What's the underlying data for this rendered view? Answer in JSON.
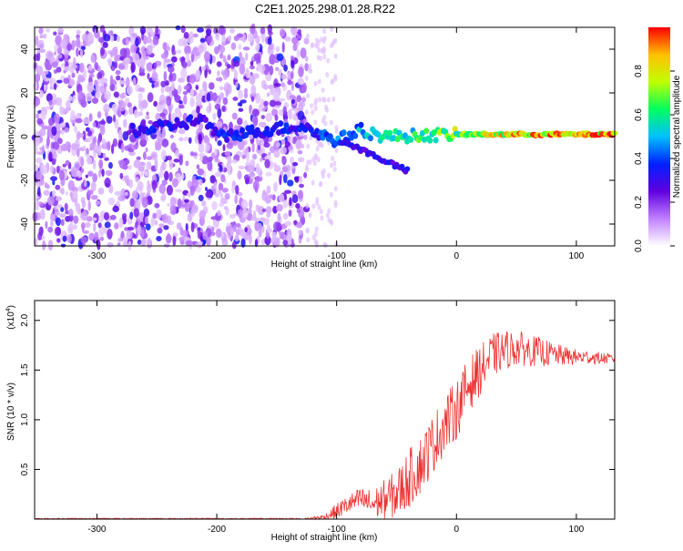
{
  "title": "C2E1.2025.298.01.28.R22",
  "chart_data": [
    {
      "type": "heatmap",
      "title": "C2E1.2025.298.01.28.R22",
      "xlabel": "Height of straight line (km)",
      "ylabel": "Frequency (Hz)",
      "xlim": [
        -352,
        132
      ],
      "ylim": [
        -50,
        50
      ],
      "xticks": [
        -300,
        -200,
        -100,
        0,
        100
      ],
      "yticks": [
        40,
        20,
        0,
        -20,
        -40
      ],
      "colorbar": {
        "label": "Normalized spectral amplitude",
        "range": [
          0.0,
          1.0
        ],
        "ticks": [
          "0.0",
          "0.2",
          "0.4",
          "0.6",
          "0.8"
        ],
        "colors": [
          "#ffffff",
          "#c080ff",
          "#6000e0",
          "#0020ff",
          "#00c0ff",
          "#00ff60",
          "#c0ff00",
          "#ffc000",
          "#ff0000"
        ]
      },
      "description_points": [
        {
          "height": -260,
          "frequency": 3,
          "amplitude": 0.35
        },
        {
          "height": -210,
          "frequency": 8,
          "amplitude": 0.3
        },
        {
          "height": -200,
          "frequency": 0,
          "amplitude": 0.35
        },
        {
          "height": -130,
          "frequency": 5,
          "amplitude": 0.35
        },
        {
          "height": -100,
          "frequency": -2,
          "amplitude": 0.45
        },
        {
          "height": -80,
          "frequency": 3,
          "amplitude": 0.5
        },
        {
          "height": -60,
          "frequency": 0,
          "amplitude": 0.55
        },
        {
          "height": -40,
          "frequency": -16,
          "amplitude": 0.3
        },
        {
          "height": 0,
          "frequency": 1,
          "amplitude": 0.7
        },
        {
          "height": 50,
          "frequency": 1,
          "amplitude": 0.85
        },
        {
          "height": 100,
          "frequency": 1,
          "amplitude": 0.9
        }
      ]
    },
    {
      "type": "line",
      "xlabel": "Height of straight line (km)",
      "ylabel": "SNR (10 * v/v)",
      "yscale_label": "(x10",
      "yscale_exponent": "4",
      "yscale_close": ")",
      "xlim": [
        -352,
        132
      ],
      "ylim": [
        0,
        2.2
      ],
      "xticks": [
        -300,
        -200,
        -100,
        0,
        100
      ],
      "yticks": [
        0.5,
        1.0,
        1.5,
        2.0
      ],
      "ytick_labels": [
        "0.5",
        "1.0",
        "1.5",
        "2.0"
      ],
      "series": [
        {
          "name": "SNR",
          "color": "#ee3333",
          "x": [
            -352,
            -300,
            -200,
            -130,
            -110,
            -100,
            -90,
            -80,
            -70,
            -60,
            -50,
            -40,
            -30,
            -20,
            -10,
            0,
            10,
            20,
            30,
            40,
            50,
            60,
            70,
            80,
            90,
            100,
            110,
            120,
            132
          ],
          "values": [
            0.0,
            0.0,
            0.0,
            0.0,
            0.02,
            0.08,
            0.15,
            0.2,
            0.15,
            0.2,
            0.25,
            0.4,
            0.55,
            0.75,
            0.95,
            1.1,
            1.35,
            1.5,
            1.65,
            1.7,
            1.72,
            1.7,
            1.68,
            1.66,
            1.64,
            1.63,
            1.63,
            1.62,
            1.61
          ],
          "spread": [
            0.0,
            0.0,
            0.0,
            0.0,
            0.03,
            0.08,
            0.1,
            0.12,
            0.15,
            0.2,
            0.25,
            0.3,
            0.3,
            0.3,
            0.3,
            0.3,
            0.28,
            0.25,
            0.22,
            0.2,
            0.18,
            0.16,
            0.15,
            0.12,
            0.1,
            0.08,
            0.07,
            0.06,
            0.05
          ]
        }
      ]
    }
  ]
}
